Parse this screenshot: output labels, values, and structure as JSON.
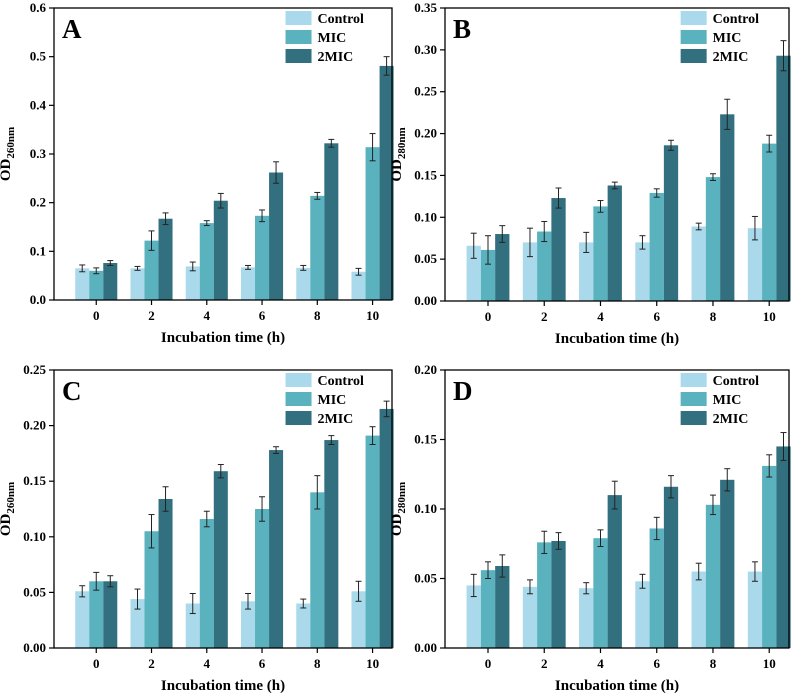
{
  "chart_data": [
    {
      "panel": "A",
      "type": "bar",
      "xlabel": "Incubation time (h)",
      "ylabel": {
        "main": "OD",
        "sub": "260nm"
      },
      "categories": [
        "0",
        "2",
        "4",
        "6",
        "8",
        "10"
      ],
      "ylim": [
        0,
        0.6
      ],
      "yticks": [
        "0.0",
        "0.1",
        "0.2",
        "0.3",
        "0.4",
        "0.5",
        "0.6"
      ],
      "legend_position": "top-right",
      "series": [
        {
          "name": "Control",
          "color": "#a9d9ea",
          "values": [
            0.065,
            0.065,
            0.069,
            0.067,
            0.066,
            0.058
          ],
          "errors": [
            0.007,
            0.004,
            0.009,
            0.004,
            0.005,
            0.007
          ]
        },
        {
          "name": "MIC",
          "color": "#59b2be",
          "values": [
            0.06,
            0.122,
            0.158,
            0.173,
            0.214,
            0.314
          ],
          "errors": [
            0.006,
            0.02,
            0.005,
            0.012,
            0.007,
            0.028
          ]
        },
        {
          "name": "2MIC",
          "color": "#33707f",
          "values": [
            0.076,
            0.167,
            0.204,
            0.262,
            0.322,
            0.481
          ],
          "errors": [
            0.005,
            0.012,
            0.015,
            0.022,
            0.008,
            0.019
          ]
        }
      ]
    },
    {
      "panel": "B",
      "type": "bar",
      "xlabel": "Incubation time (h)",
      "ylabel": {
        "main": "OD",
        "sub": "280nm"
      },
      "categories": [
        "0",
        "2",
        "4",
        "6",
        "8",
        "10"
      ],
      "ylim": [
        0,
        0.35
      ],
      "yticks": [
        "0.00",
        "0.05",
        "0.10",
        "0.15",
        "0.20",
        "0.25",
        "0.30",
        "0.35"
      ],
      "legend_position": "top-right",
      "series": [
        {
          "name": "Control",
          "color": "#a9d9ea",
          "values": [
            0.066,
            0.07,
            0.07,
            0.07,
            0.089,
            0.087
          ],
          "errors": [
            0.015,
            0.017,
            0.012,
            0.008,
            0.004,
            0.014
          ]
        },
        {
          "name": "MIC",
          "color": "#59b2be",
          "values": [
            0.061,
            0.083,
            0.113,
            0.129,
            0.148,
            0.188
          ],
          "errors": [
            0.017,
            0.012,
            0.007,
            0.005,
            0.004,
            0.01
          ]
        },
        {
          "name": "2MIC",
          "color": "#33707f",
          "values": [
            0.08,
            0.123,
            0.138,
            0.186,
            0.223,
            0.293
          ],
          "errors": [
            0.01,
            0.012,
            0.004,
            0.006,
            0.018,
            0.018
          ]
        }
      ]
    },
    {
      "panel": "C",
      "type": "bar",
      "xlabel": "Incubation time (h)",
      "ylabel": {
        "main": "OD",
        "sub": "260nm"
      },
      "categories": [
        "0",
        "2",
        "4",
        "6",
        "8",
        "10"
      ],
      "ylim": [
        0,
        0.25
      ],
      "yticks": [
        "0.00",
        "0.05",
        "0.10",
        "0.15",
        "0.20",
        "0.25"
      ],
      "legend_position": "top-right",
      "series": [
        {
          "name": "Control",
          "color": "#a9d9ea",
          "values": [
            0.051,
            0.044,
            0.04,
            0.042,
            0.04,
            0.051
          ],
          "errors": [
            0.005,
            0.009,
            0.009,
            0.007,
            0.004,
            0.009
          ]
        },
        {
          "name": "MIC",
          "color": "#59b2be",
          "values": [
            0.06,
            0.105,
            0.116,
            0.125,
            0.14,
            0.191
          ],
          "errors": [
            0.008,
            0.015,
            0.007,
            0.011,
            0.015,
            0.008
          ]
        },
        {
          "name": "2MIC",
          "color": "#33707f",
          "values": [
            0.06,
            0.134,
            0.159,
            0.178,
            0.187,
            0.215
          ],
          "errors": [
            0.005,
            0.011,
            0.006,
            0.003,
            0.004,
            0.007
          ]
        }
      ]
    },
    {
      "panel": "D",
      "type": "bar",
      "xlabel": "Incubation time (h)",
      "ylabel": {
        "main": "OD",
        "sub": "280nm"
      },
      "categories": [
        "0",
        "2",
        "4",
        "6",
        "8",
        "10"
      ],
      "ylim": [
        0,
        0.2
      ],
      "yticks": [
        "0.00",
        "0.05",
        "0.10",
        "0.15",
        "0.20"
      ],
      "legend_position": "top-right",
      "series": [
        {
          "name": "Control",
          "color": "#a9d9ea",
          "values": [
            0.045,
            0.044,
            0.043,
            0.048,
            0.055,
            0.055
          ],
          "errors": [
            0.008,
            0.005,
            0.004,
            0.005,
            0.006,
            0.007
          ]
        },
        {
          "name": "MIC",
          "color": "#59b2be",
          "values": [
            0.056,
            0.076,
            0.079,
            0.086,
            0.103,
            0.131
          ],
          "errors": [
            0.006,
            0.008,
            0.006,
            0.008,
            0.007,
            0.008
          ]
        },
        {
          "name": "2MIC",
          "color": "#33707f",
          "values": [
            0.059,
            0.077,
            0.11,
            0.116,
            0.121,
            0.145
          ],
          "errors": [
            0.008,
            0.006,
            0.01,
            0.008,
            0.008,
            0.01
          ]
        }
      ]
    }
  ]
}
